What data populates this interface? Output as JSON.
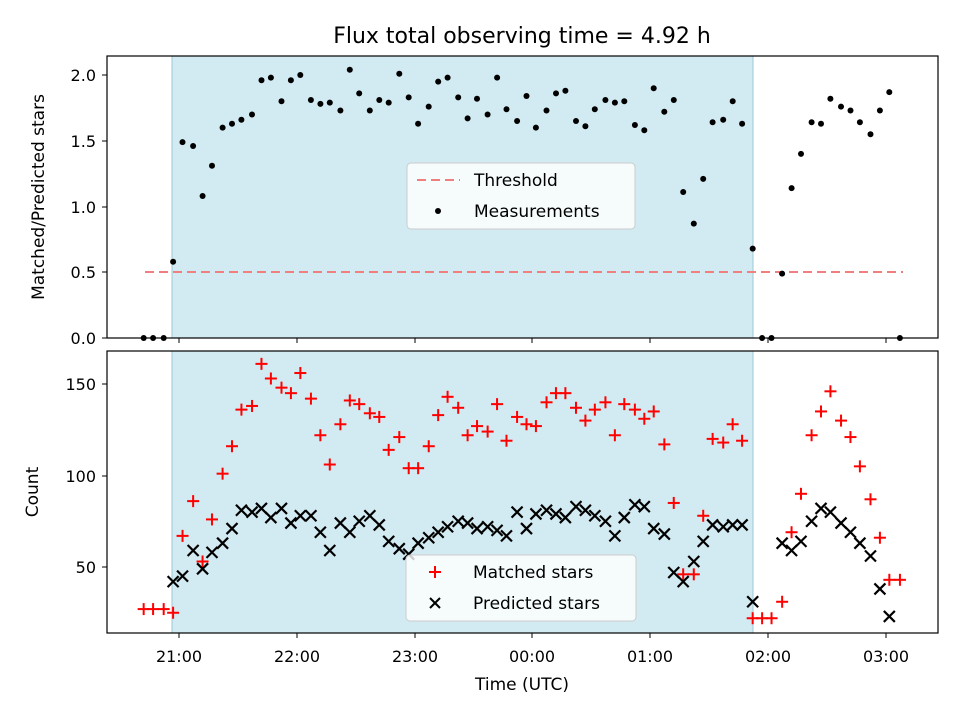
{
  "chart_data": {
    "title": "Flux total observing time = 4.92 h",
    "xlabel": "Time (UTC)",
    "x_unit": "hours after 21:00 UTC (negative = before 21:00)",
    "x_tick_labels": [
      "21:00",
      "22:00",
      "23:00",
      "00:00",
      "01:00",
      "02:00",
      "03:00"
    ],
    "shaded_band": {
      "x_start": "20:56",
      "x_end": "01:50",
      "color": "#add8e6"
    },
    "panels": [
      {
        "type": "scatter",
        "ylabel": "Matched/Predicted stars",
        "ylim": [
          0,
          2.15
        ],
        "y_ticks": [
          "0.0",
          "0.5",
          "1.0",
          "1.5",
          "2.0"
        ],
        "legend": {
          "position": "center",
          "entries": [
            "Threshold",
            "Measurements"
          ]
        },
        "threshold": {
          "name": "Threshold",
          "y": 0.5,
          "x_range": [
            -0.3,
            6.1
          ],
          "color": "#f08080",
          "style": "dashed"
        },
        "series": [
          {
            "name": "Measurements",
            "color": "#000000",
            "marker": "dot",
            "points": [
              [
                -0.3,
                0
              ],
              [
                -0.22,
                0
              ],
              [
                -0.13,
                0
              ],
              [
                -0.05,
                0.58
              ],
              [
                0.03,
                1.49
              ],
              [
                0.12,
                1.46
              ],
              [
                0.2,
                1.08
              ],
              [
                0.28,
                1.31
              ],
              [
                0.37,
                1.6
              ],
              [
                0.45,
                1.63
              ],
              [
                0.53,
                1.66
              ],
              [
                0.62,
                1.7
              ],
              [
                0.7,
                1.96
              ],
              [
                0.78,
                1.98
              ],
              [
                0.87,
                1.8
              ],
              [
                0.95,
                1.96
              ],
              [
                1.03,
                2.0
              ],
              [
                1.12,
                1.81
              ],
              [
                1.2,
                1.78
              ],
              [
                1.28,
                1.79
              ],
              [
                1.37,
                1.73
              ],
              [
                1.45,
                2.04
              ],
              [
                1.53,
                1.86
              ],
              [
                1.62,
                1.73
              ],
              [
                1.7,
                1.81
              ],
              [
                1.78,
                1.79
              ],
              [
                1.87,
                2.01
              ],
              [
                1.95,
                1.83
              ],
              [
                2.03,
                1.63
              ],
              [
                2.12,
                1.76
              ],
              [
                2.2,
                1.95
              ],
              [
                2.28,
                1.98
              ],
              [
                2.37,
                1.83
              ],
              [
                2.45,
                1.67
              ],
              [
                2.53,
                1.82
              ],
              [
                2.62,
                1.7
              ],
              [
                2.7,
                1.98
              ],
              [
                2.78,
                1.74
              ],
              [
                2.87,
                1.65
              ],
              [
                2.95,
                1.84
              ],
              [
                3.03,
                1.6
              ],
              [
                3.12,
                1.73
              ],
              [
                3.2,
                1.86
              ],
              [
                3.28,
                1.88
              ],
              [
                3.37,
                1.65
              ],
              [
                3.45,
                1.61
              ],
              [
                3.53,
                1.74
              ],
              [
                3.62,
                1.81
              ],
              [
                3.7,
                1.79
              ],
              [
                3.78,
                1.8
              ],
              [
                3.87,
                1.62
              ],
              [
                3.95,
                1.58
              ],
              [
                4.03,
                1.9
              ],
              [
                4.12,
                1.72
              ],
              [
                4.2,
                1.81
              ],
              [
                4.28,
                1.11
              ],
              [
                4.37,
                0.87
              ],
              [
                4.45,
                1.21
              ],
              [
                4.53,
                1.64
              ],
              [
                4.62,
                1.66
              ],
              [
                4.7,
                1.8
              ],
              [
                4.78,
                1.63
              ],
              [
                4.87,
                0.68
              ],
              [
                4.95,
                0
              ],
              [
                5.03,
                0
              ],
              [
                5.12,
                0.49
              ],
              [
                5.2,
                1.14
              ],
              [
                5.28,
                1.4
              ],
              [
                5.37,
                1.64
              ],
              [
                5.45,
                1.63
              ],
              [
                5.53,
                1.82
              ],
              [
                5.62,
                1.76
              ],
              [
                5.7,
                1.73
              ],
              [
                5.78,
                1.64
              ],
              [
                5.87,
                1.55
              ],
              [
                5.95,
                1.73
              ],
              [
                6.03,
                1.87
              ],
              [
                6.12,
                0
              ]
            ]
          }
        ]
      },
      {
        "type": "scatter",
        "ylabel": "Count",
        "ylim": [
          15,
          167
        ],
        "y_ticks": [
          "50",
          "100",
          "150"
        ],
        "legend": {
          "position": "bottom-center",
          "entries": [
            "Matched stars",
            "Predicted stars"
          ]
        },
        "series": [
          {
            "name": "Matched stars",
            "color": "#ff0000",
            "marker": "plus",
            "points": [
              [
                -0.3,
                27
              ],
              [
                -0.22,
                27
              ],
              [
                -0.13,
                27
              ],
              [
                -0.05,
                25
              ],
              [
                0.03,
                67
              ],
              [
                0.12,
                86
              ],
              [
                0.2,
                53
              ],
              [
                0.28,
                76
              ],
              [
                0.37,
                101
              ],
              [
                0.45,
                116
              ],
              [
                0.53,
                136
              ],
              [
                0.62,
                138
              ],
              [
                0.7,
                161
              ],
              [
                0.78,
                153
              ],
              [
                0.87,
                148
              ],
              [
                0.95,
                145
              ],
              [
                1.03,
                156
              ],
              [
                1.12,
                142
              ],
              [
                1.2,
                122
              ],
              [
                1.28,
                106
              ],
              [
                1.37,
                128
              ],
              [
                1.45,
                141
              ],
              [
                1.53,
                139
              ],
              [
                1.62,
                134
              ],
              [
                1.7,
                132
              ],
              [
                1.78,
                114
              ],
              [
                1.87,
                121
              ],
              [
                1.95,
                104
              ],
              [
                2.03,
                104
              ],
              [
                2.12,
                116
              ],
              [
                2.2,
                133
              ],
              [
                2.28,
                143
              ],
              [
                2.37,
                137
              ],
              [
                2.45,
                122
              ],
              [
                2.53,
                127
              ],
              [
                2.62,
                124
              ],
              [
                2.7,
                139
              ],
              [
                2.78,
                119
              ],
              [
                2.87,
                132
              ],
              [
                2.95,
                128
              ],
              [
                3.03,
                127
              ],
              [
                3.12,
                140
              ],
              [
                3.2,
                145
              ],
              [
                3.28,
                145
              ],
              [
                3.37,
                137
              ],
              [
                3.45,
                130
              ],
              [
                3.53,
                136
              ],
              [
                3.62,
                140
              ],
              [
                3.7,
                122
              ],
              [
                3.78,
                139
              ],
              [
                3.87,
                136
              ],
              [
                3.95,
                131
              ],
              [
                4.03,
                135
              ],
              [
                4.12,
                117
              ],
              [
                4.2,
                85
              ],
              [
                4.28,
                46
              ],
              [
                4.37,
                46
              ],
              [
                4.45,
                78
              ],
              [
                4.53,
                120
              ],
              [
                4.62,
                118
              ],
              [
                4.7,
                128
              ],
              [
                4.78,
                119
              ],
              [
                4.87,
                22
              ],
              [
                4.95,
                22
              ],
              [
                5.03,
                22
              ],
              [
                5.12,
                31
              ],
              [
                5.2,
                69
              ],
              [
                5.28,
                90
              ],
              [
                5.37,
                122
              ],
              [
                5.45,
                135
              ],
              [
                5.53,
                146
              ],
              [
                5.62,
                130
              ],
              [
                5.7,
                121
              ],
              [
                5.78,
                105
              ],
              [
                5.87,
                87
              ],
              [
                5.95,
                66
              ],
              [
                6.03,
                43
              ],
              [
                6.12,
                43
              ]
            ]
          },
          {
            "name": "Predicted stars",
            "color": "#000000",
            "marker": "x",
            "points": [
              [
                -0.05,
                42
              ],
              [
                0.03,
                45
              ],
              [
                0.12,
                59
              ],
              [
                0.2,
                49
              ],
              [
                0.28,
                58
              ],
              [
                0.37,
                63
              ],
              [
                0.45,
                71
              ],
              [
                0.53,
                81
              ],
              [
                0.62,
                80
              ],
              [
                0.7,
                82
              ],
              [
                0.78,
                77
              ],
              [
                0.87,
                82
              ],
              [
                0.95,
                74
              ],
              [
                1.03,
                78
              ],
              [
                1.12,
                78
              ],
              [
                1.2,
                69
              ],
              [
                1.28,
                59
              ],
              [
                1.37,
                74
              ],
              [
                1.45,
                69
              ],
              [
                1.53,
                75
              ],
              [
                1.62,
                78
              ],
              [
                1.7,
                73
              ],
              [
                1.78,
                64
              ],
              [
                1.87,
                60
              ],
              [
                1.95,
                57
              ],
              [
                2.03,
                63
              ],
              [
                2.12,
                66
              ],
              [
                2.2,
                69
              ],
              [
                2.28,
                72
              ],
              [
                2.37,
                75
              ],
              [
                2.45,
                74
              ],
              [
                2.53,
                71
              ],
              [
                2.62,
                72
              ],
              [
                2.7,
                70
              ],
              [
                2.78,
                67
              ],
              [
                2.87,
                80
              ],
              [
                2.95,
                71
              ],
              [
                3.03,
                79
              ],
              [
                3.12,
                81
              ],
              [
                3.2,
                79
              ],
              [
                3.28,
                77
              ],
              [
                3.37,
                83
              ],
              [
                3.45,
                81
              ],
              [
                3.53,
                78
              ],
              [
                3.62,
                75
              ],
              [
                3.7,
                67
              ],
              [
                3.78,
                77
              ],
              [
                3.87,
                84
              ],
              [
                3.95,
                83
              ],
              [
                4.03,
                71
              ],
              [
                4.12,
                68
              ],
              [
                4.2,
                47
              ],
              [
                4.28,
                42
              ],
              [
                4.37,
                53
              ],
              [
                4.45,
                64
              ],
              [
                4.53,
                73
              ],
              [
                4.62,
                72
              ],
              [
                4.7,
                73
              ],
              [
                4.78,
                73
              ],
              [
                4.87,
                31
              ],
              [
                5.12,
                63
              ],
              [
                5.2,
                59
              ],
              [
                5.28,
                64
              ],
              [
                5.37,
                75
              ],
              [
                5.45,
                82
              ],
              [
                5.53,
                80
              ],
              [
                5.62,
                74
              ],
              [
                5.7,
                69
              ],
              [
                5.78,
                63
              ],
              [
                5.87,
                56
              ],
              [
                5.95,
                38
              ],
              [
                6.03,
                23
              ]
            ]
          }
        ]
      }
    ]
  }
}
